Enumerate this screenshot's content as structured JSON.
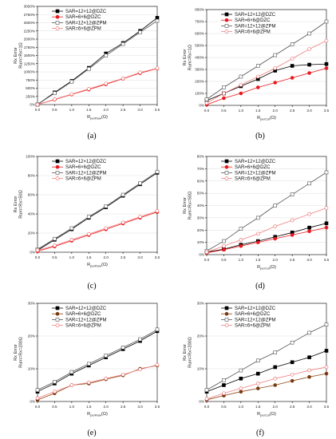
{
  "figure": {
    "xlabel_main": "R",
    "xlabel_sub": "perRow",
    "xlabel_unit": "(Ω)",
    "xlabel_sub_b": "perCol",
    "ylabel_prefix": "Rx Error",
    "xticks": [
      "0.0",
      "0.5",
      "1.0",
      "1.5",
      "2.0",
      "2.5",
      "3.0",
      "3.5"
    ]
  },
  "colors": {
    "black": "#000000",
    "red": "#e8191e",
    "gray": "#555555",
    "pink": "#f08080"
  },
  "chart_data": [
    {
      "id": "a",
      "panel_label": "(a)",
      "type": "line",
      "ylabel": "Rx Error",
      "ylabel2": "Rum=Rx=1Ω",
      "xlabel_sub": "perRow",
      "yticks": [
        "0%",
        "250%",
        "500%",
        "750%",
        "1000%",
        "1250%",
        "1500%",
        "1750%",
        "2000%",
        "2250%",
        "2500%",
        "2750%",
        "3000%"
      ],
      "ylim": [
        0,
        3000
      ],
      "xlim": [
        0,
        3.5
      ],
      "x": [
        0,
        0.5,
        1.0,
        1.5,
        2.0,
        2.5,
        3.0,
        3.5
      ],
      "legend_pos": "top-left",
      "series": [
        {
          "name": "SAR=12×12@DZC",
          "style": "filled-square-black",
          "values": [
            0,
            370,
            720,
            1120,
            1560,
            1880,
            2250,
            2650
          ]
        },
        {
          "name": "SAR=6×6@DZC",
          "style": "filled-circle-red",
          "values": [
            0,
            150,
            310,
            460,
            620,
            790,
            960,
            1100
          ]
        },
        {
          "name": "SAR=12×12@ZPM",
          "style": "open-square-gray",
          "values": [
            0,
            350,
            700,
            1090,
            1500,
            1850,
            2210,
            2560
          ]
        },
        {
          "name": "SAR=6×6@ZPM",
          "style": "open-circle-pink",
          "values": [
            0,
            160,
            320,
            480,
            640,
            800,
            980,
            1110
          ]
        }
      ]
    },
    {
      "id": "b",
      "panel_label": "(b)",
      "type": "line",
      "ylabel": "Rx Error",
      "ylabel2": "Rum=Rx=1Ω",
      "xlabel_sub": "perCol",
      "yticks": [
        "0%",
        "100%",
        "200%",
        "300%",
        "400%",
        "500%",
        "600%",
        "700%",
        "800%"
      ],
      "ylim": [
        0,
        800
      ],
      "xlim": [
        0,
        3.5
      ],
      "x": [
        0,
        0.5,
        1.0,
        1.5,
        2.0,
        2.5,
        3.0,
        3.5
      ],
      "legend_pos": "top-left",
      "series": [
        {
          "name": "SAR=12×12@DZC",
          "style": "filled-square-black",
          "values": [
            40,
            100,
            160,
            220,
            290,
            330,
            340,
            345
          ]
        },
        {
          "name": "SAR=6×6@DZC",
          "style": "filled-circle-red",
          "values": [
            5,
            60,
            100,
            150,
            190,
            230,
            270,
            310
          ]
        },
        {
          "name": "SAR=12×12@ZPM",
          "style": "open-square-gray",
          "values": [
            50,
            150,
            240,
            330,
            420,
            510,
            600,
            700
          ]
        },
        {
          "name": "SAR=6×6@ZPM",
          "style": "open-circle-pink",
          "values": [
            20,
            100,
            170,
            240,
            310,
            390,
            470,
            540
          ]
        }
      ]
    },
    {
      "id": "c",
      "panel_label": "(c)",
      "type": "line",
      "ylabel": "Rx Error",
      "ylabel2": "Rum=Rx=50Ω",
      "xlabel_sub": "perRow",
      "yticks": [
        "0%",
        "20%",
        "40%",
        "60%",
        "80%",
        "100%"
      ],
      "ylim": [
        0,
        100
      ],
      "xlim": [
        0,
        3.5
      ],
      "x": [
        0,
        0.5,
        1.0,
        1.5,
        2.0,
        2.5,
        3.0,
        3.5
      ],
      "legend_pos": "top-left",
      "series": [
        {
          "name": "SAR=12×12@DZC",
          "style": "filled-square-black",
          "values": [
            2,
            13,
            24,
            36,
            47,
            59,
            71,
            83
          ]
        },
        {
          "name": "SAR=6×6@DZC",
          "style": "filled-circle-red",
          "values": [
            1,
            6,
            12,
            18,
            24,
            30,
            36,
            42
          ]
        },
        {
          "name": "SAR=12×12@ZPM",
          "style": "open-square-gray",
          "values": [
            3,
            14,
            25,
            37,
            48,
            60,
            72,
            84
          ]
        },
        {
          "name": "SAR=6×6@ZPM",
          "style": "open-circle-pink",
          "values": [
            2,
            7,
            13,
            19,
            25,
            31,
            37,
            43
          ]
        }
      ]
    },
    {
      "id": "d",
      "panel_label": "(d)",
      "type": "line",
      "ylabel": "Rx Error",
      "ylabel2": "Rum=Rx=50Ω",
      "xlabel_sub": "perCol",
      "yticks": [
        "0%",
        "10%",
        "20%",
        "30%",
        "40%",
        "50%",
        "60%",
        "70%",
        "80%"
      ],
      "ylim": [
        0,
        80
      ],
      "xlim": [
        0,
        3.5
      ],
      "x": [
        0,
        0.5,
        1.0,
        1.5,
        2.0,
        2.5,
        3.0,
        3.5
      ],
      "legend_pos": "top-left",
      "series": [
        {
          "name": "SAR=12×12@DZC",
          "style": "filled-square-black",
          "values": [
            2,
            4.5,
            8,
            11,
            14.5,
            18,
            22,
            25.5
          ]
        },
        {
          "name": "SAR=6×6@DZC",
          "style": "filled-circle-red",
          "values": [
            1.5,
            4,
            7,
            10,
            13,
            16,
            19,
            22
          ]
        },
        {
          "name": "SAR=12×12@ZPM",
          "style": "open-square-gray",
          "values": [
            3,
            11,
            21,
            30,
            40,
            49,
            58,
            67
          ]
        },
        {
          "name": "SAR=6×6@ZPM",
          "style": "open-circle-pink",
          "values": [
            2,
            7,
            12,
            17,
            23,
            28,
            33,
            38
          ]
        }
      ]
    },
    {
      "id": "e",
      "panel_label": "(e)",
      "type": "line",
      "ylabel": "Rx Error",
      "ylabel2": "Rum=Rx=200Ω",
      "xlabel_sub": "perRow",
      "yticks": [
        "0%",
        "10%",
        "20%",
        "30%"
      ],
      "ylim": [
        0,
        30
      ],
      "xlim": [
        0,
        3.5
      ],
      "x": [
        0,
        0.5,
        1.0,
        1.5,
        2.0,
        2.5,
        3.0,
        3.5
      ],
      "legend_pos": "top-left",
      "series": [
        {
          "name": "SAR=12×12@DZC",
          "style": "filled-square-black",
          "values": [
            3,
            5.5,
            8.5,
            11,
            13.5,
            16,
            18.5,
            21.5
          ]
        },
        {
          "name": "SAR=6×6@DZC",
          "style": "filled-circle-brown",
          "values": [
            0.5,
            2.5,
            5,
            5.5,
            6.8,
            8,
            10,
            11
          ]
        },
        {
          "name": "SAR=12×12@ZPM",
          "style": "open-square-gray",
          "values": [
            3.5,
            6,
            9,
            11.5,
            14,
            16.5,
            19,
            22
          ]
        },
        {
          "name": "SAR=6×6@ZPM",
          "style": "open-circle-pink",
          "values": [
            1,
            3,
            5,
            5.8,
            7,
            8.2,
            9.8,
            11.2
          ]
        }
      ]
    },
    {
      "id": "f",
      "panel_label": "(f)",
      "type": "line",
      "ylabel": "Rx Error",
      "ylabel2": "Rum=Rx=200Ω",
      "xlabel_sub": "perCol",
      "yticks": [
        "0%",
        "10%",
        "20%",
        "30%"
      ],
      "ylim": [
        0,
        30
      ],
      "xlim": [
        0,
        3.5
      ],
      "x": [
        0,
        0.5,
        1.0,
        1.5,
        2.0,
        2.5,
        3.0,
        3.5
      ],
      "legend_pos": "top-left",
      "series": [
        {
          "name": "SAR=12×12@DZC",
          "style": "filled-square-black",
          "values": [
            3,
            5,
            7,
            8.5,
            10.5,
            12,
            13.5,
            15.5
          ]
        },
        {
          "name": "SAR=6×6@DZC",
          "style": "filled-circle-brown",
          "values": [
            0.5,
            1.8,
            3,
            4,
            5,
            6.3,
            7.5,
            8.5
          ]
        },
        {
          "name": "SAR=12×12@ZPM",
          "style": "open-square-gray",
          "values": [
            3.5,
            6.5,
            9.5,
            12.5,
            15,
            18,
            21,
            23.5
          ]
        },
        {
          "name": "SAR=6×6@ZPM",
          "style": "open-circle-pink",
          "values": [
            0.8,
            2.5,
            4,
            5.5,
            7,
            8.2,
            9.5,
            10.5
          ]
        }
      ]
    }
  ]
}
